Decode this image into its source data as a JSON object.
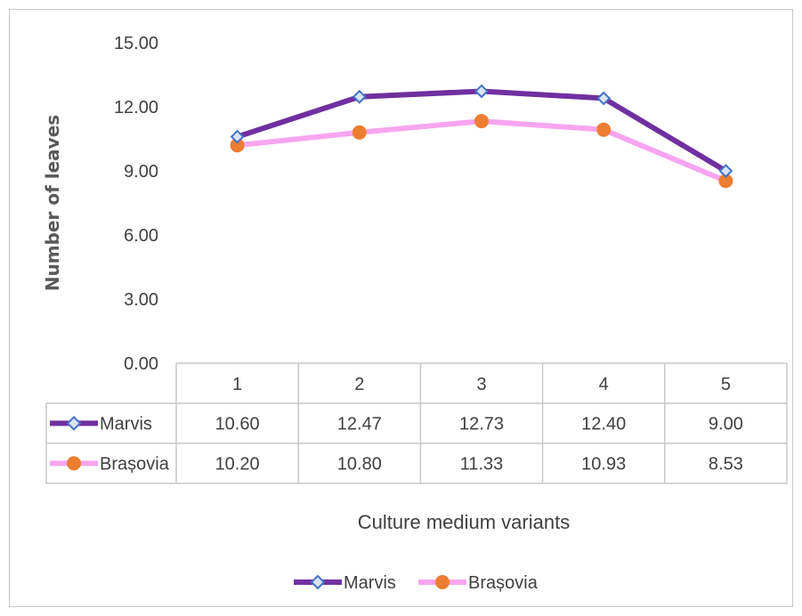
{
  "chart_data": {
    "type": "line",
    "categories": [
      "1",
      "2",
      "3",
      "4",
      "5"
    ],
    "series": [
      {
        "name": "Marvis",
        "values": [
          10.6,
          12.47,
          12.73,
          12.4,
          9.0
        ],
        "color": "#7030a0",
        "marker": "diamond",
        "marker_fill": "#dae3f3",
        "marker_stroke": "#4472c4"
      },
      {
        "name": "Brașovia",
        "values": [
          10.2,
          10.8,
          11.33,
          10.93,
          8.53
        ],
        "color": "#f7a5f0",
        "marker": "circle",
        "marker_fill": "#ed7d31",
        "marker_stroke": "#ed7d31"
      }
    ],
    "table_values": [
      [
        "10.60",
        "12.47",
        "12.73",
        "12.40",
        "9.00"
      ],
      [
        "10.20",
        "10.80",
        "11.33",
        "10.93",
        "8.53"
      ]
    ],
    "yticks": [
      "15.00",
      "12.00",
      "9.00",
      "6.00",
      "3.00",
      "0.00"
    ],
    "ylim": [
      0,
      15
    ],
    "xlabel": "Culture medium variants",
    "ylabel": "Number of leaves",
    "grid": false,
    "legend_position": "bottom",
    "data_table": true
  }
}
